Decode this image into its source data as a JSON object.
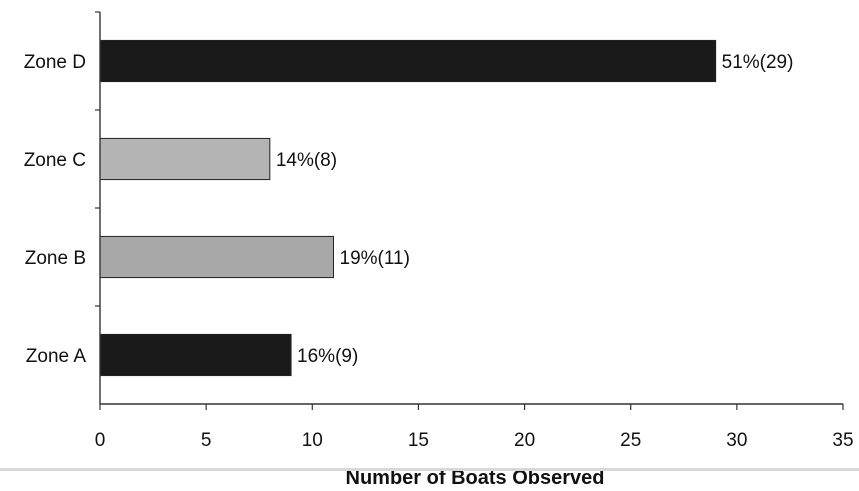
{
  "chart_data": {
    "type": "bar",
    "orientation": "horizontal",
    "title": "",
    "xlabel": "Number of Boats Observed",
    "ylabel": "",
    "categories": [
      "Zone A",
      "Zone B",
      "Zone C",
      "Zone D"
    ],
    "values": [
      9,
      11,
      8,
      29
    ],
    "data_labels": [
      "16%(9)",
      "19%(11)",
      "14%(8)",
      "51%(29)"
    ],
    "bar_colors": [
      "#1a1a1a",
      "#a8a8a8",
      "#b4b4b4",
      "#1a1a1a"
    ],
    "xlim": [
      0,
      35
    ],
    "xticks": [
      0,
      5,
      10,
      15,
      20,
      25,
      30,
      35
    ],
    "grid": false,
    "legend": "none"
  }
}
